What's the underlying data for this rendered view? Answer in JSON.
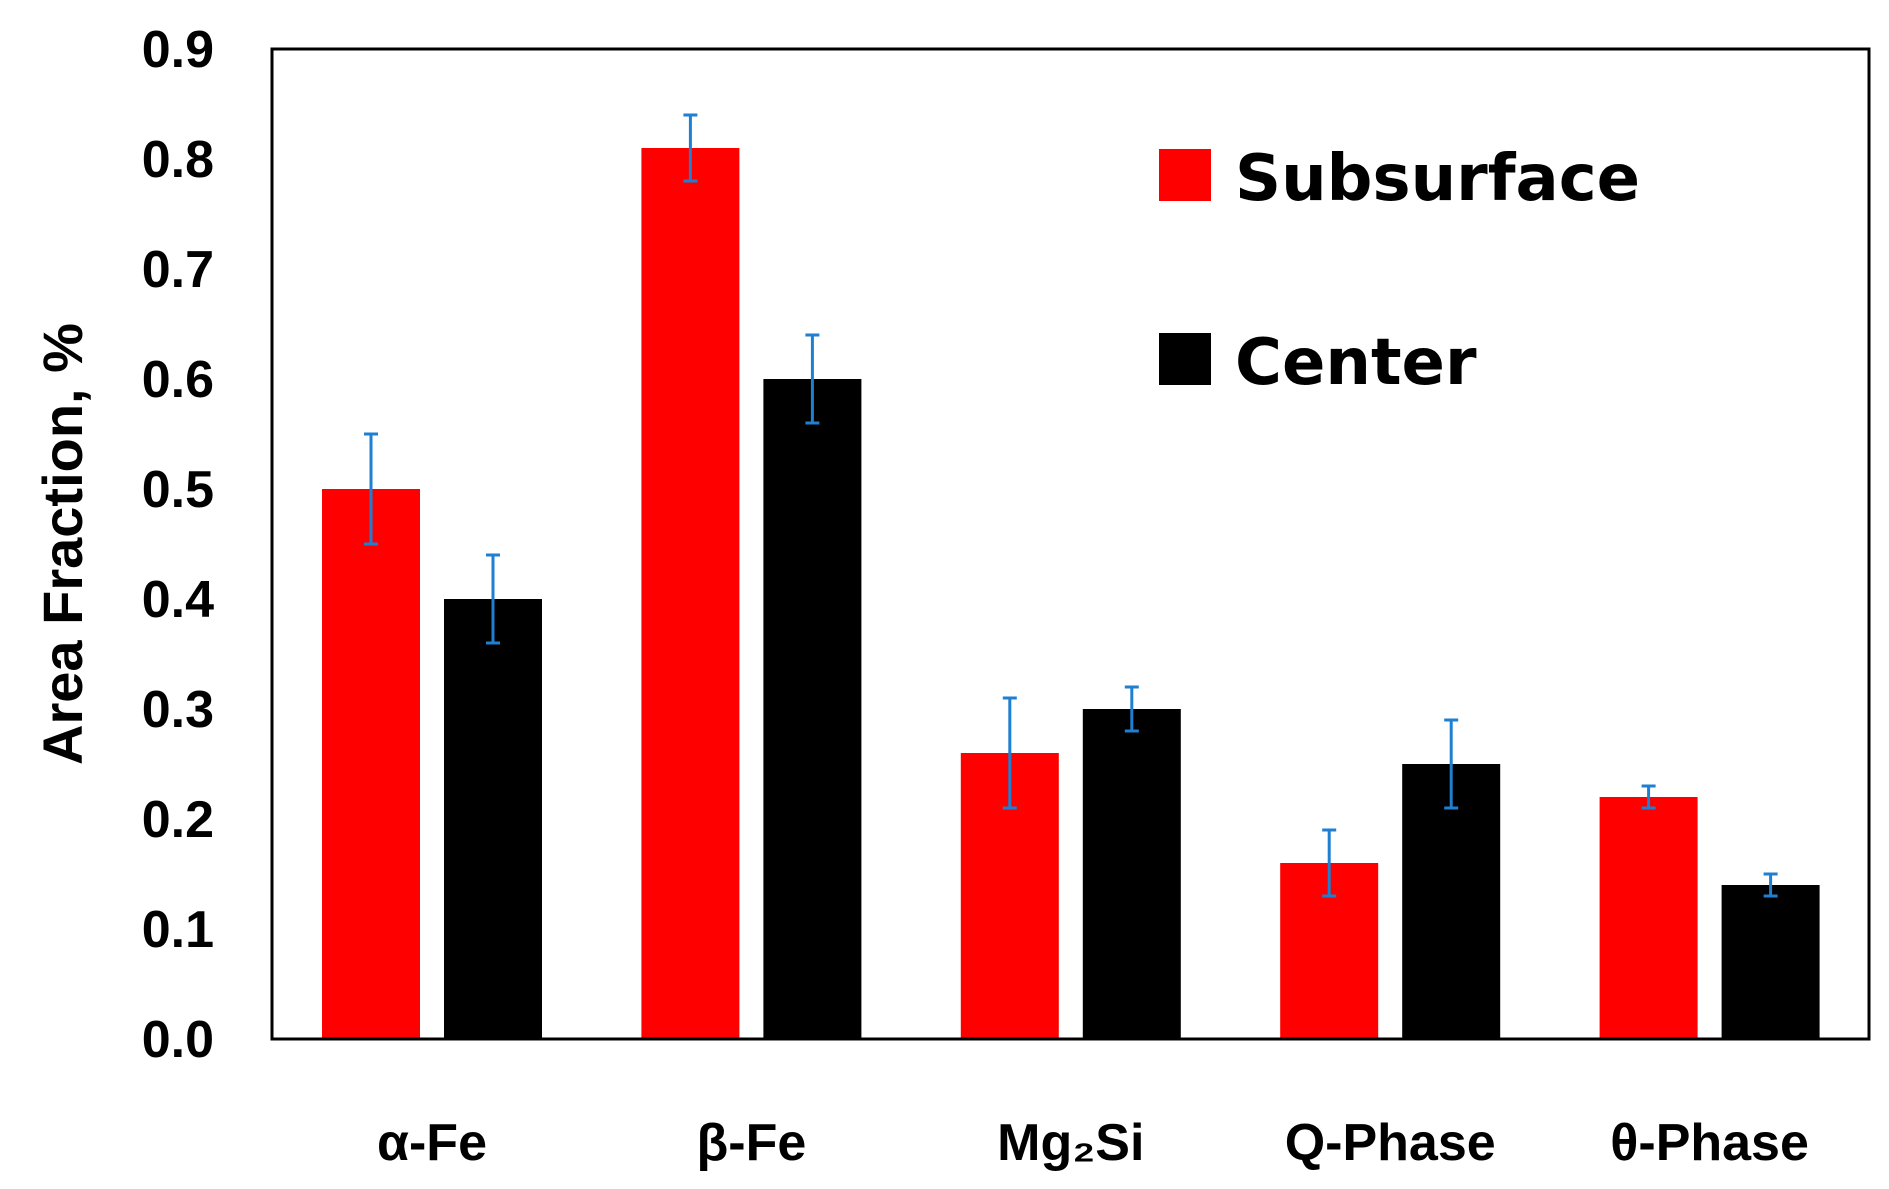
{
  "chart_data": {
    "type": "bar",
    "title": "",
    "xlabel": "",
    "ylabel": "Area Fraction, %",
    "ylim": [
      0,
      0.9
    ],
    "yticks": [
      "0.0",
      "0.1",
      "0.2",
      "0.3",
      "0.4",
      "0.5",
      "0.6",
      "0.7",
      "0.8",
      "0.9"
    ],
    "grid": false,
    "legend_position": "top-right",
    "categories": [
      "α-Fe",
      "β-Fe",
      "Mg₂Si",
      "Q-Phase",
      "θ-Phase"
    ],
    "series": [
      {
        "name": "Subsurface",
        "color": "#ff0000",
        "values": [
          0.5,
          0.81,
          0.26,
          0.16,
          0.22
        ],
        "errors": [
          0.05,
          0.03,
          0.05,
          0.03,
          0.01
        ]
      },
      {
        "name": "Center",
        "color": "#000000",
        "values": [
          0.4,
          0.6,
          0.3,
          0.25,
          0.14
        ],
        "errors": [
          0.04,
          0.04,
          0.02,
          0.04,
          0.01
        ]
      }
    ],
    "error_bar_color": "#1f7fd0"
  }
}
